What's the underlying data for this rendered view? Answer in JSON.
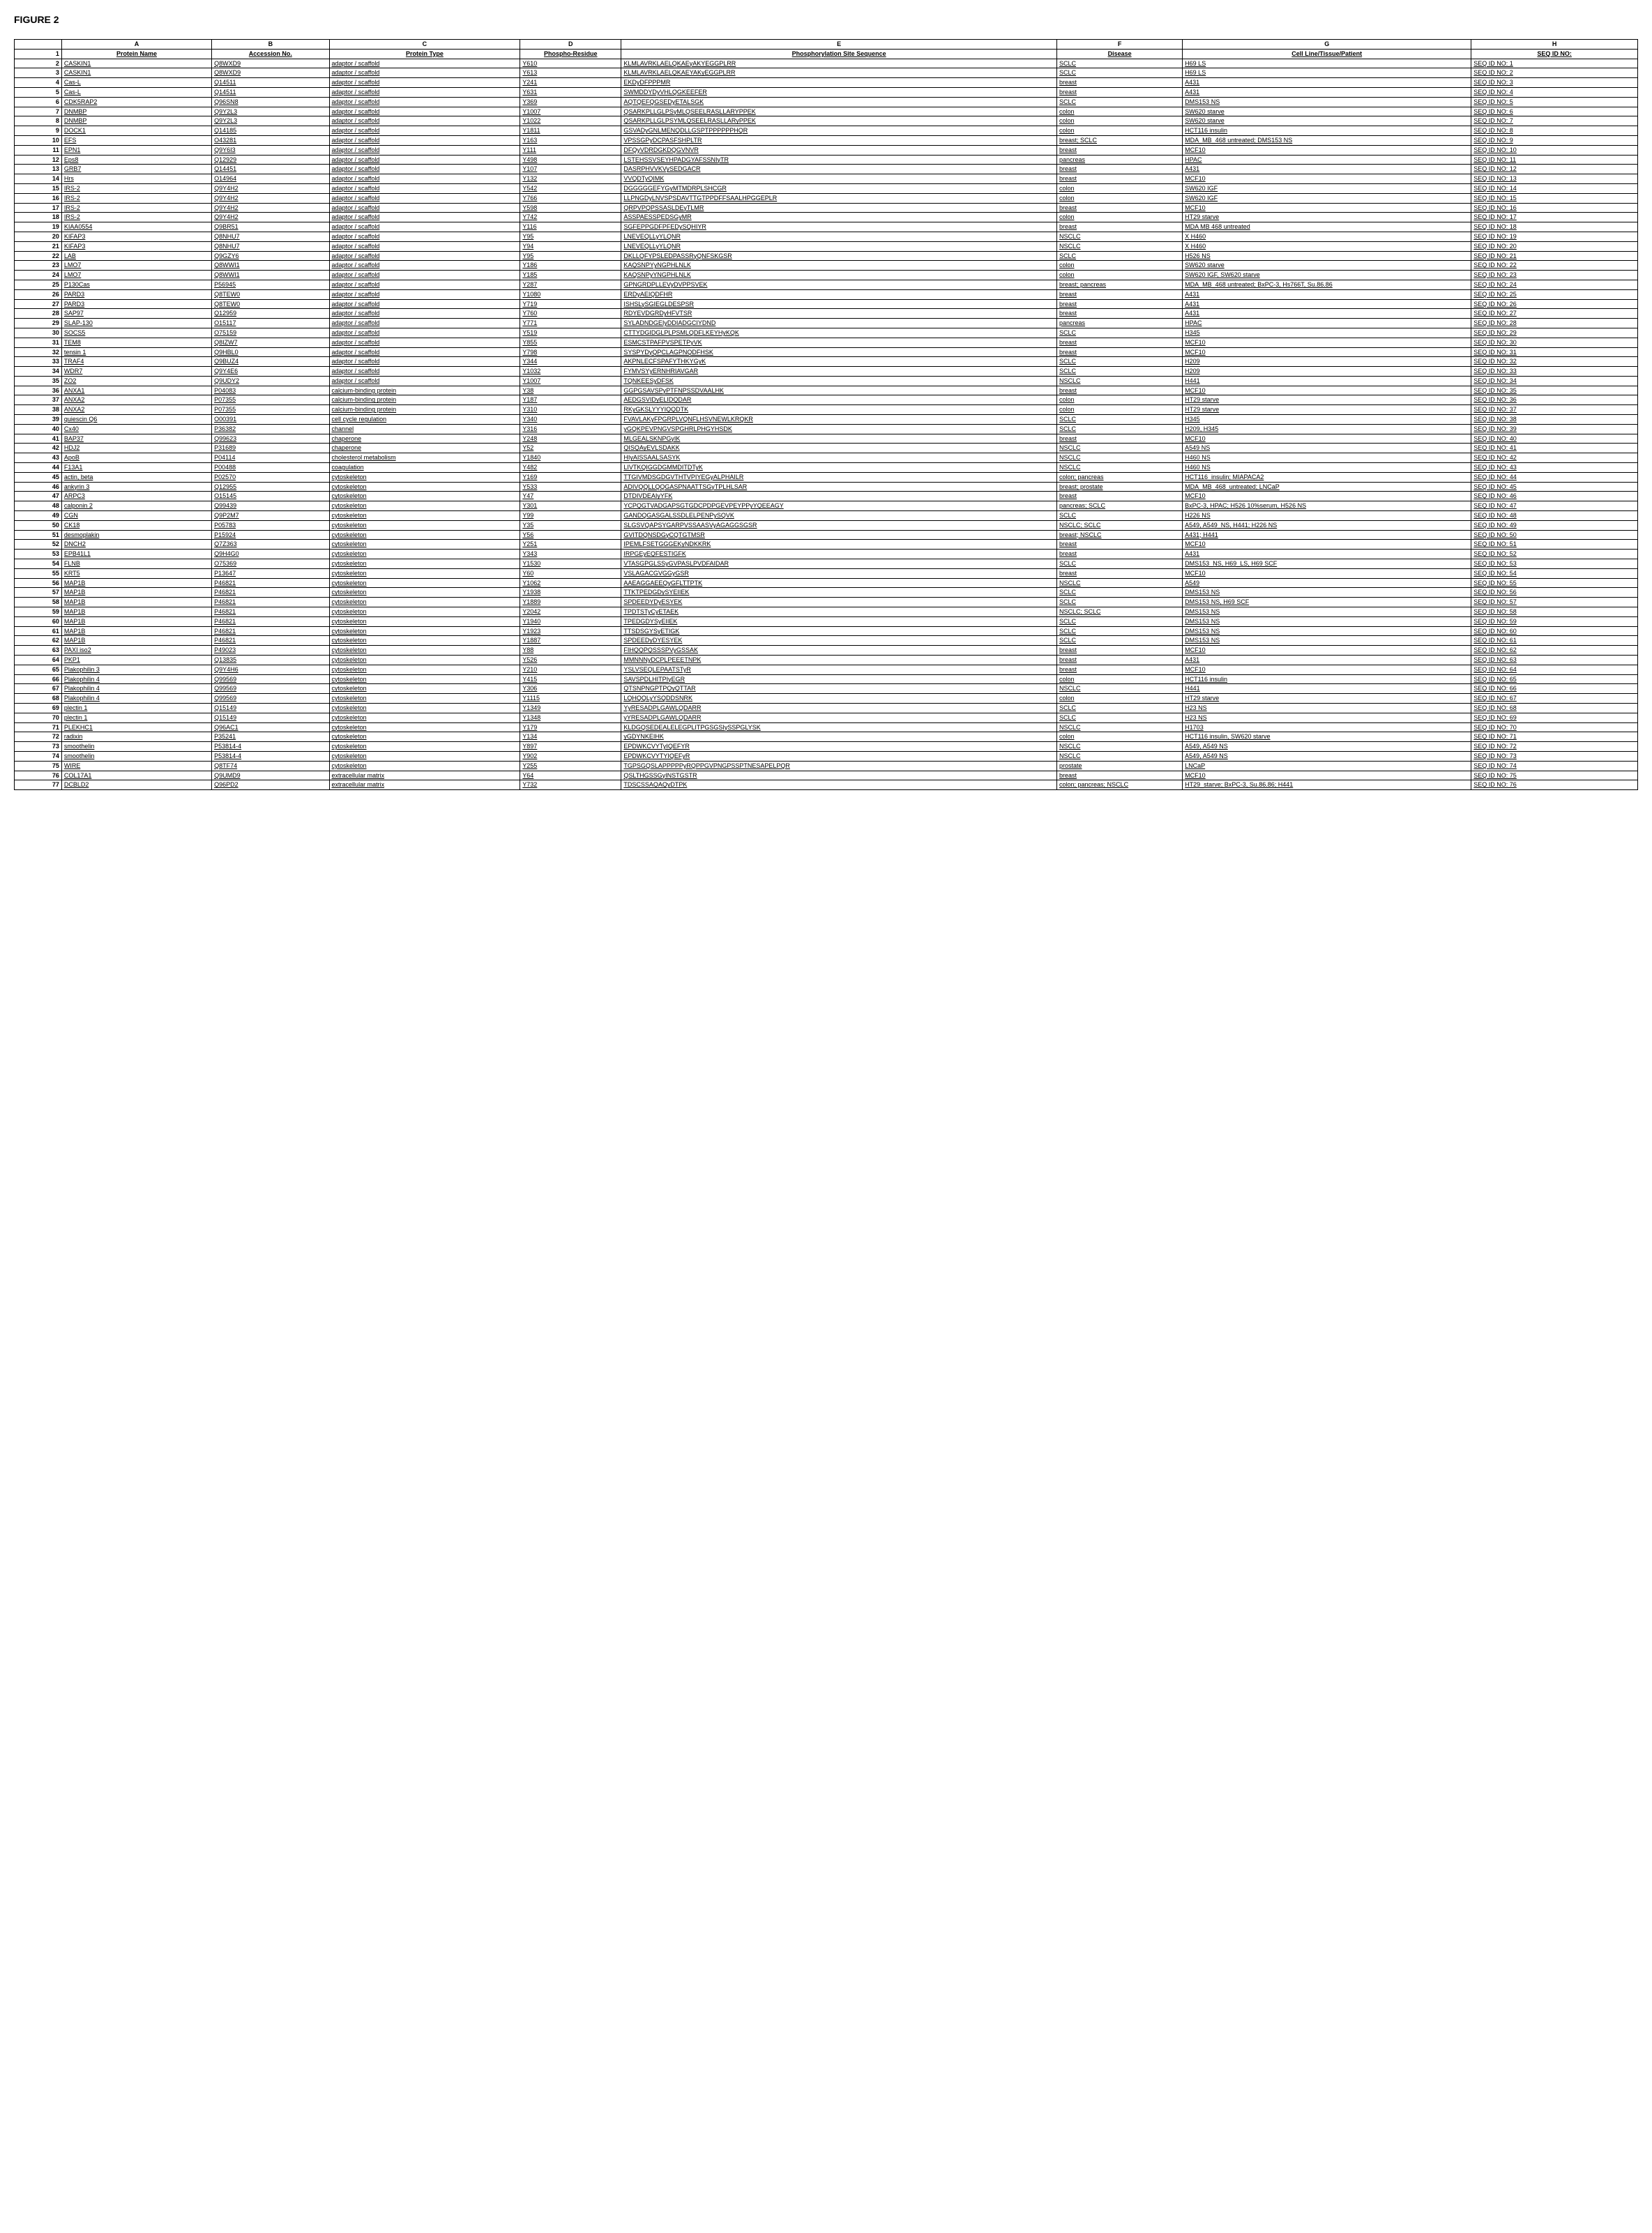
{
  "figure_title": "FIGURE 2",
  "column_letters": [
    "A",
    "B",
    "C",
    "D",
    "E",
    "F",
    "G",
    "H"
  ],
  "headers": {
    "idx": "1",
    "a": "Protein Name",
    "b": "Accession No.",
    "c": "Protein Type",
    "d": "Phospho-Residue",
    "e": "Phosphorylation Site Sequence",
    "f": "Disease",
    "g": "Cell Line/Tissue/Patient",
    "h": "SEQ ID NO:"
  },
  "rows": [
    {
      "n": "2",
      "a": "CASKIN1",
      "b": "Q8WXD9",
      "c": "adaptor / scaffold",
      "d": "Y610",
      "e": "KLMLAVRKLAELQKAEyAKYEGGPLRR",
      "f": "SCLC",
      "g": "H69 LS",
      "h": "SEQ ID NO: 1"
    },
    {
      "n": "3",
      "a": "CASKIN1",
      "b": "Q8WXD9",
      "c": "adaptor / scaffold",
      "d": "Y613",
      "e": "KLMLAVRKLAELQKAEYAKyEGGPLRR",
      "f": "SCLC",
      "g": "H69 LS",
      "h": "SEQ ID NO: 2"
    },
    {
      "n": "4",
      "a": "Cas-L",
      "b": "Q14511",
      "c": "adaptor / scaffold",
      "d": "Y241",
      "e": "EKDyDFPPPMR",
      "f": "breast",
      "g": "A431",
      "h": "SEQ ID NO: 3"
    },
    {
      "n": "5",
      "a": "Cas-L",
      "b": "Q14511",
      "c": "adaptor / scaffold",
      "d": "Y631",
      "e": "SWMDDYDyVHLQGKEEFER",
      "f": "breast",
      "g": "A431",
      "h": "SEQ ID NO: 4"
    },
    {
      "n": "6",
      "a": "CDK5RAP2",
      "b": "Q96SN8",
      "c": "adaptor / scaffold",
      "d": "Y369",
      "e": "AQTQEFQGSEDyETALSGK",
      "f": "SCLC",
      "g": "DMS153 NS",
      "h": "SEQ ID NO: 5"
    },
    {
      "n": "7",
      "a": "DNMBP",
      "b": "Q9Y2L3",
      "c": "adaptor / scaffold",
      "d": "Y1007",
      "e": "QSARKPLLGLPSyMLQSEELRASLLARYPPEK",
      "f": "colon",
      "g": "SW620 starve",
      "h": "SEQ ID NO: 6"
    },
    {
      "n": "8",
      "a": "DNMBP",
      "b": "Q9Y2L3",
      "c": "adaptor / scaffold",
      "d": "Y1022",
      "e": "QSARKPLLGLPSYMLQSEELRASLLARyPPEK",
      "f": "colon",
      "g": "SW620 starve",
      "h": "SEQ ID NO: 7"
    },
    {
      "n": "9",
      "a": "DOCK1",
      "b": "Q14185",
      "c": "adaptor / scaffold",
      "d": "Y1811",
      "e": "GSVADyGNLMENQDLLGSPTPPPPPPHQR",
      "f": "colon",
      "g": "HCT116 insulin",
      "h": "SEQ ID NO: 8"
    },
    {
      "n": "10",
      "a": "EFS",
      "b": "O43281",
      "c": "adaptor / scaffold",
      "d": "Y163",
      "e": "VPSSGPyDCPASFSHPLTR",
      "f": "breast; SCLC",
      "g": "MDA_MB_468 untreated; DMS153 NS",
      "h": "SEQ ID NO: 9"
    },
    {
      "n": "11",
      "a": "EPN1",
      "b": "Q9Y6I3",
      "c": "adaptor / scaffold",
      "d": "Y111",
      "e": "DFQyVDRDGKDQGVNVR",
      "f": "breast",
      "g": "MCF10",
      "h": "SEQ ID NO: 10"
    },
    {
      "n": "12",
      "a": "Eps8",
      "b": "Q12929",
      "c": "adaptor / scaffold",
      "d": "Y498",
      "e": "LSTEHSSVSEYHPADGYAFSSNIyTR",
      "f": "pancreas",
      "g": "HPAC",
      "h": "SEQ ID NO: 11"
    },
    {
      "n": "13",
      "a": "GRB7",
      "b": "Q14451",
      "c": "adaptor / scaffold",
      "d": "Y107",
      "e": "DASRPHVVKVySEDGACR",
      "f": "breast",
      "g": "A431",
      "h": "SEQ ID NO: 12"
    },
    {
      "n": "14",
      "a": "Hrs",
      "b": "O14964",
      "c": "adaptor / scaffold",
      "d": "Y132",
      "e": "VVQDTyQIMK",
      "f": "breast",
      "g": "MCF10",
      "h": "SEQ ID NO: 13"
    },
    {
      "n": "15",
      "a": "IRS-2",
      "b": "Q9Y4H2",
      "c": "adaptor / scaffold",
      "d": "Y542",
      "e": "DGGGGGEFYGyMTMDRPLSHCGR",
      "f": "colon",
      "g": "SW620 IGF",
      "h": "SEQ ID NO: 14"
    },
    {
      "n": "16",
      "a": "IRS-2",
      "b": "Q9Y4H2",
      "c": "adaptor / scaffold",
      "d": "Y766",
      "e": "LLPNGDyLNVSPSDAVTTGTPPDFFSAALHPGGEPLR",
      "f": "colon",
      "g": "SW620 IGF",
      "h": "SEQ ID NO: 15"
    },
    {
      "n": "17",
      "a": "IRS-2",
      "b": "Q9Y4H2",
      "c": "adaptor / scaffold",
      "d": "Y598",
      "e": "QRPVPQPSSASLDEyTLMR",
      "f": "breast",
      "g": "MCF10",
      "h": "SEQ ID NO: 16"
    },
    {
      "n": "18",
      "a": "IRS-2",
      "b": "Q9Y4H2",
      "c": "adaptor / scaffold",
      "d": "Y742",
      "e": "ASSPAESSPEDSGyMR",
      "f": "colon",
      "g": "HT29 starve",
      "h": "SEQ ID NO: 17"
    },
    {
      "n": "19",
      "a": "KIAA0554",
      "b": "Q9BR51",
      "c": "adaptor / scaffold",
      "d": "Y116",
      "e": "SGFEPPGDFPFEDySQHIYR",
      "f": "breast",
      "g": "MDA MB 468 untreated",
      "h": "SEQ ID NO: 18"
    },
    {
      "n": "20",
      "a": "KIFAP3",
      "b": "Q8NHU7",
      "c": "adaptor / scaffold",
      "d": "Y95",
      "e": "LNEVEQLLyYLQNR",
      "f": "NSCLC",
      "g": "X H460",
      "h": "SEQ ID NO: 19"
    },
    {
      "n": "21",
      "a": "KIFAP3",
      "b": "Q8NHU7",
      "c": "adaptor / scaffold",
      "d": "Y94",
      "e": "LNEVEQLLyYLQNR",
      "f": "NSCLC",
      "g": "X H460",
      "h": "SEQ ID NO: 20"
    },
    {
      "n": "22",
      "a": "LAB",
      "b": "Q9GZY6",
      "c": "adaptor / scaffold",
      "d": "Y95",
      "e": "DKLLQFYPSLEDPASSRyQNFSKGSR",
      "f": "SCLC",
      "g": "H526 NS",
      "h": "SEQ ID NO: 21"
    },
    {
      "n": "23",
      "a": "LMO7",
      "b": "Q8WWI1",
      "c": "adaptor / scaffold",
      "d": "Y186",
      "e": "KAQSNPYyNGPHLNLK",
      "f": "colon",
      "g": "SW620 starve",
      "h": "SEQ ID NO: 22"
    },
    {
      "n": "24",
      "a": "LMO7",
      "b": "Q8WWI1",
      "c": "adaptor / scaffold",
      "d": "Y185",
      "e": "KAQSNPyYNGPHLNLK",
      "f": "colon",
      "g": "SW620 IGF, SW620 starve",
      "h": "SEQ ID NO: 23"
    },
    {
      "n": "25",
      "a": "P130Cas",
      "b": "P56945",
      "c": "adaptor / scaffold",
      "d": "Y287",
      "e": "GPNGRDPLLEVyDVPPSVEK",
      "f": "breast; pancreas",
      "g": "MDA_MB_468 untreated; BxPC-3, Hs766T, Su.86.86",
      "h": "SEQ ID NO: 24"
    },
    {
      "n": "26",
      "a": "PARD3",
      "b": "Q8TEW0",
      "c": "adaptor / scaffold",
      "d": "Y1080",
      "e": "ERDyAEIQDFHR",
      "f": "breast",
      "g": "A431",
      "h": "SEQ ID NO: 25"
    },
    {
      "n": "27",
      "a": "PARD3",
      "b": "Q8TEW0",
      "c": "adaptor / scaffold",
      "d": "Y719",
      "e": "ISHSLySGIEGLDESPSR",
      "f": "breast",
      "g": "A431",
      "h": "SEQ ID NO: 26"
    },
    {
      "n": "28",
      "a": "SAP97",
      "b": "Q12959",
      "c": "adaptor / scaffold",
      "d": "Y760",
      "e": "RDYEVDGRDyHFVTSR",
      "f": "breast",
      "g": "A431",
      "h": "SEQ ID NO: 27"
    },
    {
      "n": "29",
      "a": "SLAP-130",
      "b": "O15117",
      "c": "adaptor / scaffold",
      "d": "Y771",
      "e": "SYLADNDGEIyDDIADGCIYDND",
      "f": "pancreas",
      "g": "HPAC",
      "h": "SEQ ID NO: 28"
    },
    {
      "n": "30",
      "a": "SOCS5",
      "b": "O75159",
      "c": "adaptor / scaffold",
      "d": "Y519",
      "e": "CTTYDGIDGLPLPSMLQDFLKEYHyKQK",
      "f": "SCLC",
      "g": "H345",
      "h": "SEQ ID NO: 29"
    },
    {
      "n": "31",
      "a": "TEM8",
      "b": "Q8IZW7",
      "c": "adaptor / scaffold",
      "d": "Y855",
      "e": "ESMCSTPAFPVSPETPyVK",
      "f": "breast",
      "g": "MCF10",
      "h": "SEQ ID NO: 30"
    },
    {
      "n": "32",
      "a": "tensin 1",
      "b": "Q9HBL0",
      "c": "adaptor / scaffold",
      "d": "Y798",
      "e": "SYSPYDyQPCLAGPNQDFHSK",
      "f": "breast",
      "g": "MCF10",
      "h": "SEQ ID NO: 31"
    },
    {
      "n": "33",
      "a": "TRAF4",
      "b": "Q9BUZ4",
      "c": "adaptor / scaffold",
      "d": "Y344",
      "e": "AKPNLECFSPAFYTHKYGyK",
      "f": "SCLC",
      "g": "H209",
      "h": "SEQ ID NO: 32"
    },
    {
      "n": "34",
      "a": "WDR7",
      "b": "Q9Y4E6",
      "c": "adaptor / scaffold",
      "d": "Y1032",
      "e": "FYMVSYyERNHRIAVGAR",
      "f": "SCLC",
      "g": "H209",
      "h": "SEQ ID NO: 33"
    },
    {
      "n": "35",
      "a": "ZO2",
      "b": "Q9UDY2",
      "c": "adaptor / scaffold",
      "d": "Y1007",
      "e": "TQNKEESyDFSK",
      "f": "NSCLC",
      "g": "H441",
      "h": "SEQ ID NO: 34"
    },
    {
      "n": "36",
      "a": "ANXA1",
      "b": "P04083",
      "c": "calcium-binding protein",
      "d": "Y38",
      "e": "GGPGSAVSPyPTFNPSSDVAALHK",
      "f": "breast",
      "g": "MCF10",
      "h": "SEQ ID NO: 35"
    },
    {
      "n": "37",
      "a": "ANXA2",
      "b": "P07355",
      "c": "calcium-binding protein",
      "d": "Y187",
      "e": "AEDGSVIDyELIDQDAR",
      "f": "colon",
      "g": "HT29 starve",
      "h": "SEQ ID NO: 36"
    },
    {
      "n": "38",
      "a": "ANXA2",
      "b": "P07355",
      "c": "calcium-binding protein",
      "d": "Y310",
      "e": "RKyGKSLYYYIQQDTK",
      "f": "colon",
      "g": "HT29 starve",
      "h": "SEQ ID NO: 37"
    },
    {
      "n": "39",
      "a": "quiescin Q6",
      "b": "O00391",
      "c": "cell cycle regulation",
      "d": "Y340",
      "e": "FVAVLAKyFPGRPLVQNFLHSVNEWLKRQKR",
      "f": "SCLC",
      "g": "H345",
      "h": "SEQ ID NO: 38"
    },
    {
      "n": "40",
      "a": "Cx40",
      "b": "P36382",
      "c": "channel",
      "d": "Y316",
      "e": "yGQKPEVPNGVSPGHRLPHGYHSDK",
      "f": "SCLC",
      "g": "H209, H345",
      "h": "SEQ ID NO: 39"
    },
    {
      "n": "41",
      "a": "BAP37",
      "b": "Q99623",
      "c": "chaperone",
      "d": "Y248",
      "e": "MLGEALSKNPGyIK",
      "f": "breast",
      "g": "MCF10",
      "h": "SEQ ID NO: 40"
    },
    {
      "n": "42",
      "a": "HDJ2",
      "b": "P31689",
      "c": "chaperone",
      "d": "Y52",
      "e": "QISQAyEVLSDAKK",
      "f": "NSCLC",
      "g": "A549 NS",
      "h": "SEQ ID NO: 41"
    },
    {
      "n": "43",
      "a": "ApoB",
      "b": "P04114",
      "c": "cholesterol metabolism",
      "d": "Y1840",
      "e": "HIyAISSAALSASYK",
      "f": "NSCLC",
      "g": "H460 NS",
      "h": "SEQ ID NO: 42"
    },
    {
      "n": "44",
      "a": "F13A1",
      "b": "P00488",
      "c": "coagulation",
      "d": "Y482",
      "e": "LIVTKQIGGDGMMDITDTyK",
      "f": "NSCLC",
      "g": "H460 NS",
      "h": "SEQ ID NO: 43"
    },
    {
      "n": "45",
      "a": "actin, beta",
      "b": "P02570",
      "c": "cytoskeleton",
      "d": "Y169",
      "e": "TTGIVMDSGDGVTHTVPIYEGyALPHAILR",
      "f": "colon; pancreas",
      "g": "HCT116_insulin; MIAPACA2",
      "h": "SEQ ID NO: 44"
    },
    {
      "n": "46",
      "a": "ankyrin 3",
      "b": "Q12955",
      "c": "cytoskeleton",
      "d": "Y533",
      "e": "ADIVQQLLQQGASPNAATTSGyTPLHLSAR",
      "f": "breast; prostate",
      "g": "MDA_MB_468_untreated; LNCaP",
      "h": "SEQ ID NO: 45"
    },
    {
      "n": "47",
      "a": "ARPC3",
      "b": "O15145",
      "c": "cytoskeleton",
      "d": "Y47",
      "e": "DTDIVDEAIyYFK",
      "f": "breast",
      "g": "MCF10",
      "h": "SEQ ID NO: 46"
    },
    {
      "n": "48",
      "a": "calponin 2",
      "b": "Q99439",
      "c": "cytoskeleton",
      "d": "Y301",
      "e": "YCPQGTVADGAPSGTGDCPDPGEVPEYPPyYQEEAGY",
      "f": "pancreas; SCLC",
      "g": "BxPC-3, HPAC; H526 10%serum, H526 NS",
      "h": "SEQ ID NO: 47"
    },
    {
      "n": "49",
      "a": "CGN",
      "b": "Q9P2M7",
      "c": "cytoskeleton",
      "d": "Y99",
      "e": "GANDQGASGALSSDLELPENPySQVK",
      "f": "SCLC",
      "g": "H226 NS",
      "h": "SEQ ID NO: 48"
    },
    {
      "n": "50",
      "a": "CK18",
      "b": "P05783",
      "c": "cytoskeleton",
      "d": "Y35",
      "e": "SLGSVQAPSYGARPVSSAASVyAGAGGSGSR",
      "f": "NSCLC; SCLC",
      "g": "A549, A549_NS, H441; H226 NS",
      "h": "SEQ ID NO: 49"
    },
    {
      "n": "51",
      "a": "desmoplakin",
      "b": "P15924",
      "c": "cytoskeleton",
      "d": "Y56",
      "e": "GVITDQNSDGyCQTGTMSR",
      "f": "breast; NSCLC",
      "g": "A431; H441",
      "h": "SEQ ID NO: 50"
    },
    {
      "n": "52",
      "a": "DNCH2",
      "b": "Q7Z363",
      "c": "cytoskeleton",
      "d": "Y251",
      "e": "IPEMLFSETGGGEKyNDKKRK",
      "f": "breast",
      "g": "MCF10",
      "h": "SEQ ID NO: 51"
    },
    {
      "n": "53",
      "a": "EPB41L1",
      "b": "Q9H4G0",
      "c": "cytoskeleton",
      "d": "Y343",
      "e": "IRPGEyEQFESTIGFK",
      "f": "breast",
      "g": "A431",
      "h": "SEQ ID NO: 52"
    },
    {
      "n": "54",
      "a": "FLNB",
      "b": "O75369",
      "c": "cytoskeleton",
      "d": "Y1530",
      "e": "VTASGPGLSSyGVPASLPVDFAIDAR",
      "f": "SCLC",
      "g": "DMS153_NS, H69_LS, H69 SCF",
      "h": "SEQ ID NO: 53"
    },
    {
      "n": "55",
      "a": "KRT5",
      "b": "P13647",
      "c": "cytoskeleton",
      "d": "Y60",
      "e": "VSLAGACGVGGyGSR",
      "f": "breast",
      "g": "MCF10",
      "h": "SEQ ID NO: 54"
    },
    {
      "n": "56",
      "a": "MAP1B",
      "b": "P46821",
      "c": "cytoskeleton",
      "d": "Y1062",
      "e": "AAEAGGAEEQyGFLTTPTK",
      "f": "NSCLC",
      "g": "A549",
      "h": "SEQ ID NO: 55"
    },
    {
      "n": "57",
      "a": "MAP1B",
      "b": "P46821",
      "c": "cytoskeleton",
      "d": "Y1938",
      "e": "TTKTPEDGDySYEIIEK",
      "f": "SCLC",
      "g": "DMS153 NS",
      "h": "SEQ ID NO: 56"
    },
    {
      "n": "58",
      "a": "MAP1B",
      "b": "P46821",
      "c": "cytoskeleton",
      "d": "Y1889",
      "e": "SPDEEDYDyESYEK",
      "f": "SCLC",
      "g": "DMS153 NS, H69 SCF",
      "h": "SEQ ID NO: 57"
    },
    {
      "n": "59",
      "a": "MAP1B",
      "b": "P46821",
      "c": "cytoskeleton",
      "d": "Y2042",
      "e": "TPDTSTyCyETAEK",
      "f": "NSCLC; SCLC",
      "g": "DMS153 NS",
      "h": "SEQ ID NO: 58"
    },
    {
      "n": "60",
      "a": "MAP1B",
      "b": "P46821",
      "c": "cytoskeleton",
      "d": "Y1940",
      "e": "TPEDGDYSyEIIEK",
      "f": "SCLC",
      "g": "DMS153 NS",
      "h": "SEQ ID NO: 59"
    },
    {
      "n": "61",
      "a": "MAP1B",
      "b": "P46821",
      "c": "cytoskeleton",
      "d": "Y1923",
      "e": "TTSDSGYSyETIGK",
      "f": "SCLC",
      "g": "DMS153 NS",
      "h": "SEQ ID NO: 60"
    },
    {
      "n": "62",
      "a": "MAP1B",
      "b": "P46821",
      "c": "cytoskeleton",
      "d": "Y1887",
      "e": "SPDEEDyDYESYEK",
      "f": "SCLC",
      "g": "DMS153 NS",
      "h": "SEQ ID NO: 61"
    },
    {
      "n": "63",
      "a": "PAXI iso2",
      "b": "P49023",
      "c": "cytoskeleton",
      "d": "Y88",
      "e": "FIHQQPQSSSPVyGSSAK",
      "f": "breast",
      "g": "MCF10",
      "h": "SEQ ID NO: 62"
    },
    {
      "n": "64",
      "a": "PKP1",
      "b": "Q13835",
      "c": "cytoskeleton",
      "d": "Y526",
      "e": "MMNNNyDCPLPEEETNPK",
      "f": "breast",
      "g": "A431",
      "h": "SEQ ID NO: 63"
    },
    {
      "n": "65",
      "a": "Plakophilin 3",
      "b": "Q9Y4H6",
      "c": "cytoskeleton",
      "d": "Y210",
      "e": "YSLVSEQLEPAATSTyR",
      "f": "breast",
      "g": "MCF10",
      "h": "SEQ ID NO: 64"
    },
    {
      "n": "66",
      "a": "Plakophilin 4",
      "b": "Q99569",
      "c": "cytoskeleton",
      "d": "Y415",
      "e": "SAVSPDLHITPIyEGR",
      "f": "colon",
      "g": "HCT116 insulin",
      "h": "SEQ ID NO: 65"
    },
    {
      "n": "67",
      "a": "Plakophilin 4",
      "b": "Q99569",
      "c": "cytoskeleton",
      "d": "Y306",
      "e": "QTSNPNGPTPQyQTTAR",
      "f": "NSCLC",
      "g": "H441",
      "h": "SEQ ID NO: 66"
    },
    {
      "n": "68",
      "a": "Plakophilin 4",
      "b": "Q99569",
      "c": "cytoskeleton",
      "d": "Y1115",
      "e": "LQHQQLyYSQDDSNRK",
      "f": "colon",
      "g": "HT29 starve",
      "h": "SEQ ID NO: 67"
    },
    {
      "n": "69",
      "a": "plectin 1",
      "b": "Q15149",
      "c": "cytoskeleton",
      "d": "Y1349",
      "e": "YyRESADPLGAWLQDARR",
      "f": "SCLC",
      "g": "H23 NS",
      "h": "SEQ ID NO: 68"
    },
    {
      "n": "70",
      "a": "plectin 1",
      "b": "Q15149",
      "c": "cytoskeleton",
      "d": "Y1348",
      "e": "yYRESADPLGAWLQDARR",
      "f": "SCLC",
      "g": "H23 NS",
      "h": "SEQ ID NO: 69"
    },
    {
      "n": "71",
      "a": "PLEKHC1",
      "b": "Q96AC1",
      "c": "cytoskeleton",
      "d": "Y179",
      "e": "KLDGQSEDEALELEGPLITPGSGSIySSPGLYSK",
      "f": "NSCLC",
      "g": "H1703",
      "h": "SEQ ID NO: 70"
    },
    {
      "n": "72",
      "a": "radixin",
      "b": "P35241",
      "c": "cytoskeleton",
      "d": "Y134",
      "e": "yGDYNKEIHK",
      "f": "colon",
      "g": "HCT116 insulin, SW620 starve",
      "h": "SEQ ID NO: 71"
    },
    {
      "n": "73",
      "a": "smoothelin",
      "b": "P53814-4",
      "c": "cytoskeleton",
      "d": "Y897",
      "e": "EPDWKCVYTyIQEFYR",
      "f": "NSCLC",
      "g": "A549, A549 NS",
      "h": "SEQ ID NO: 72"
    },
    {
      "n": "74",
      "a": "smoothelin",
      "b": "P53814-4",
      "c": "cytoskeleton",
      "d": "Y902",
      "e": "EPDWKCVYTYIQEFyR",
      "f": "NSCLC",
      "g": "A549, A549 NS",
      "h": "SEQ ID NO: 73"
    },
    {
      "n": "75",
      "a": "WIRE",
      "b": "Q8TF74",
      "c": "cytoskeleton",
      "d": "Y255",
      "e": "TGPSGQSLAPPPPPyRQPPGVPNGPSSPTNESAPELPQR",
      "f": "prostate",
      "g": "LNCaP",
      "h": "SEQ ID NO: 74"
    },
    {
      "n": "76",
      "a": "COL17A1",
      "b": "Q9UMD9",
      "c": "extracellular matrix",
      "d": "Y64",
      "e": "QSLTHGSSGyINSTGSTR",
      "f": "breast",
      "g": "MCF10",
      "h": "SEQ ID NO: 75"
    },
    {
      "n": "77",
      "a": "DCBLD2",
      "b": "Q96PD2",
      "c": "extracellular matrix",
      "d": "Y732",
      "e": "TDSCSSAQAQyDTPK",
      "f": "colon; pancreas; NSCLC",
      "g": "HT29_starve; BxPC-3, Su.86.86; H441",
      "h": "SEQ ID NO: 76"
    }
  ]
}
